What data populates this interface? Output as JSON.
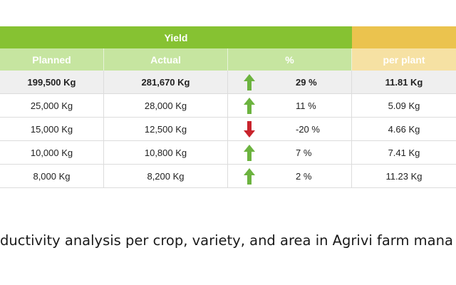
{
  "table": {
    "group_header": "Yield",
    "columns": [
      "Planned",
      "Actual",
      "%",
      "per plant"
    ],
    "rows": [
      {
        "planned": "199,500 Kg",
        "actual": "281,670 Kg",
        "trend": "up",
        "pct": "29 %",
        "per_plant": "11.81 Kg",
        "is_total": true
      },
      {
        "planned": "25,000 Kg",
        "actual": "28,000 Kg",
        "trend": "up",
        "pct": "11 %",
        "per_plant": "5.09 Kg",
        "is_total": false
      },
      {
        "planned": "15,000 Kg",
        "actual": "12,500 Kg",
        "trend": "down",
        "pct": "-20 %",
        "per_plant": "4.66 Kg",
        "is_total": false
      },
      {
        "planned": "10,000 Kg",
        "actual": "10,800 Kg",
        "trend": "up",
        "pct": "7 %",
        "per_plant": "7.41 Kg",
        "is_total": false
      },
      {
        "planned": "8,000 Kg",
        "actual": "8,200 Kg",
        "trend": "up",
        "pct": "2 %",
        "per_plant": "11.23 Kg",
        "is_total": false
      }
    ]
  },
  "icons": {
    "up": "arrow-up-icon",
    "down": "arrow-down-icon"
  },
  "colors": {
    "yield_header": "#86c232",
    "per_plant_header": "#ebc34e",
    "up_arrow": "#6cb33f",
    "down_arrow": "#c8232c"
  },
  "caption": "ductivity analysis per crop, variety, and area in Agrivi farm mana"
}
